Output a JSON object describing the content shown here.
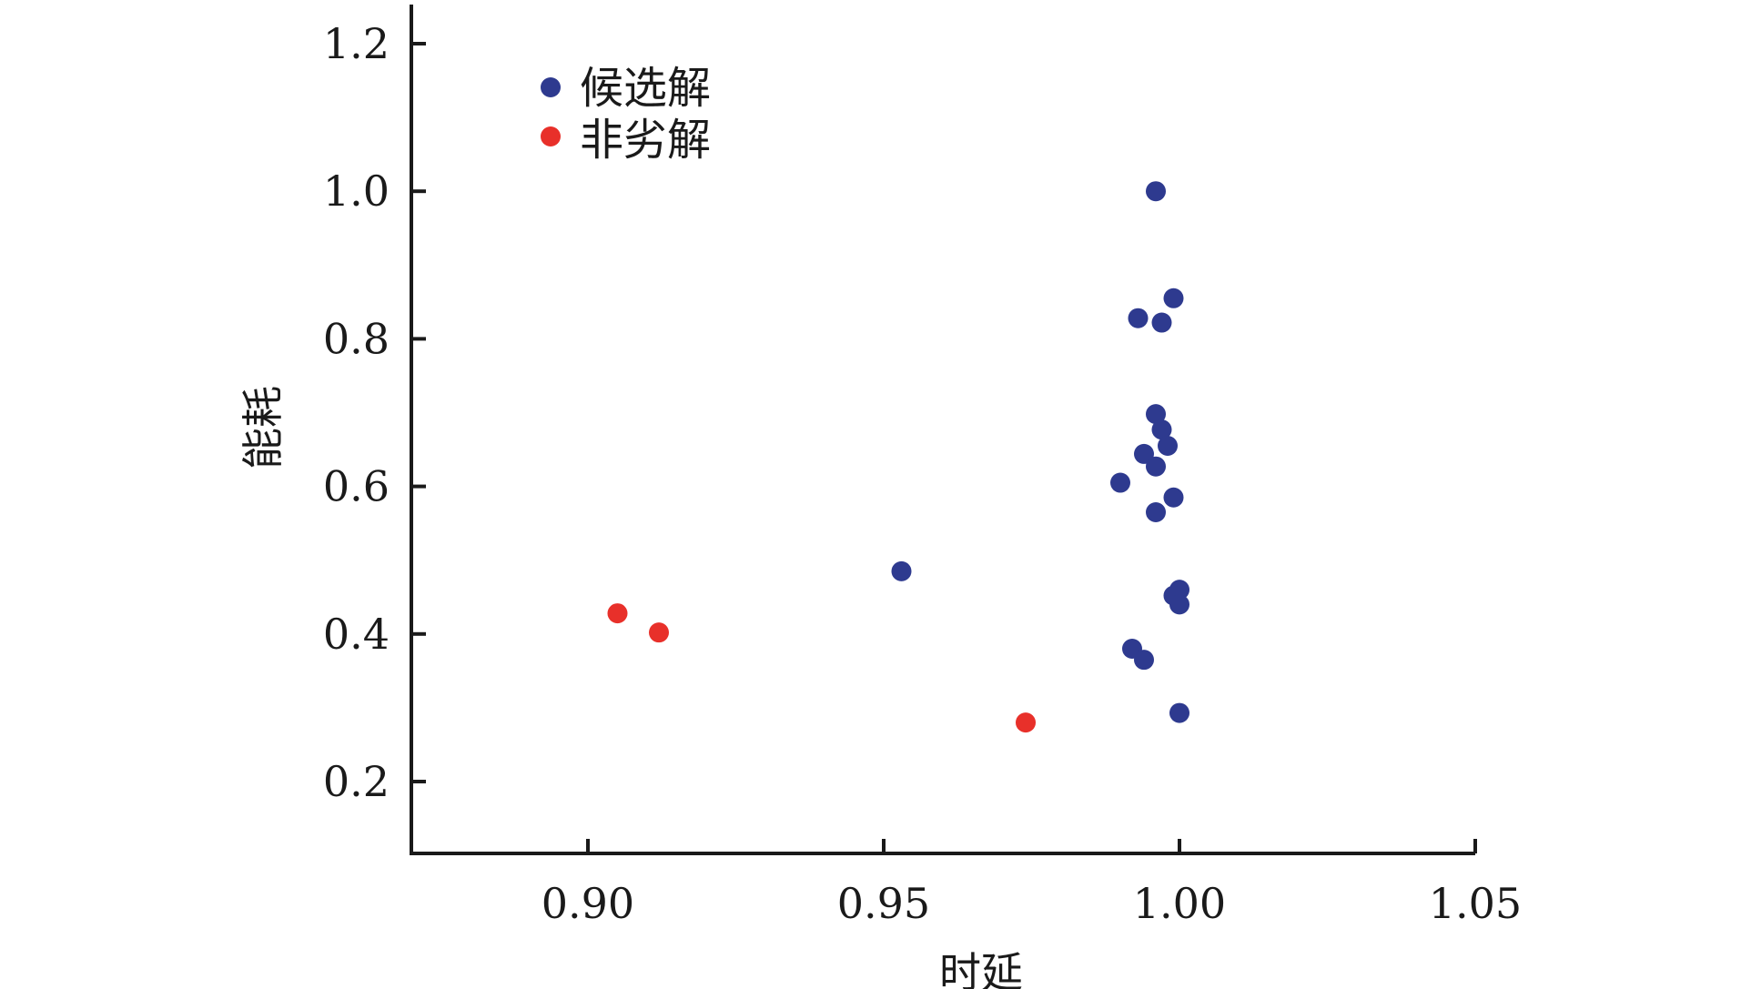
{
  "chart_data": {
    "type": "scatter",
    "title": "",
    "xlabel": "时延",
    "ylabel": "能耗",
    "xlim": [
      0.87,
      1.05
    ],
    "ylim": [
      0.1,
      1.25
    ],
    "xticks": [
      "0.90",
      "0.95",
      "1.00",
      "1.05"
    ],
    "yticks": [
      "0.2",
      "0.4",
      "0.6",
      "0.8",
      "1.0",
      "1.2"
    ],
    "grid": false,
    "legend_position": "top-left",
    "series": [
      {
        "name": "候选解",
        "color": "#2e3a8f",
        "points": [
          {
            "x": 0.996,
            "y": 1.0
          },
          {
            "x": 0.999,
            "y": 0.855
          },
          {
            "x": 0.993,
            "y": 0.828
          },
          {
            "x": 0.997,
            "y": 0.822
          },
          {
            "x": 0.996,
            "y": 0.698
          },
          {
            "x": 0.997,
            "y": 0.677
          },
          {
            "x": 0.998,
            "y": 0.655
          },
          {
            "x": 0.994,
            "y": 0.644
          },
          {
            "x": 0.996,
            "y": 0.627
          },
          {
            "x": 0.99,
            "y": 0.605
          },
          {
            "x": 0.999,
            "y": 0.585
          },
          {
            "x": 0.996,
            "y": 0.565
          },
          {
            "x": 0.953,
            "y": 0.485
          },
          {
            "x": 1.0,
            "y": 0.46
          },
          {
            "x": 0.999,
            "y": 0.452
          },
          {
            "x": 1.0,
            "y": 0.44
          },
          {
            "x": 0.992,
            "y": 0.38
          },
          {
            "x": 0.994,
            "y": 0.365
          },
          {
            "x": 1.0,
            "y": 0.293
          }
        ]
      },
      {
        "name": "非劣解",
        "color": "#e8302a",
        "points": [
          {
            "x": 0.905,
            "y": 0.428
          },
          {
            "x": 0.912,
            "y": 0.402
          },
          {
            "x": 0.974,
            "y": 0.28
          }
        ]
      }
    ]
  }
}
